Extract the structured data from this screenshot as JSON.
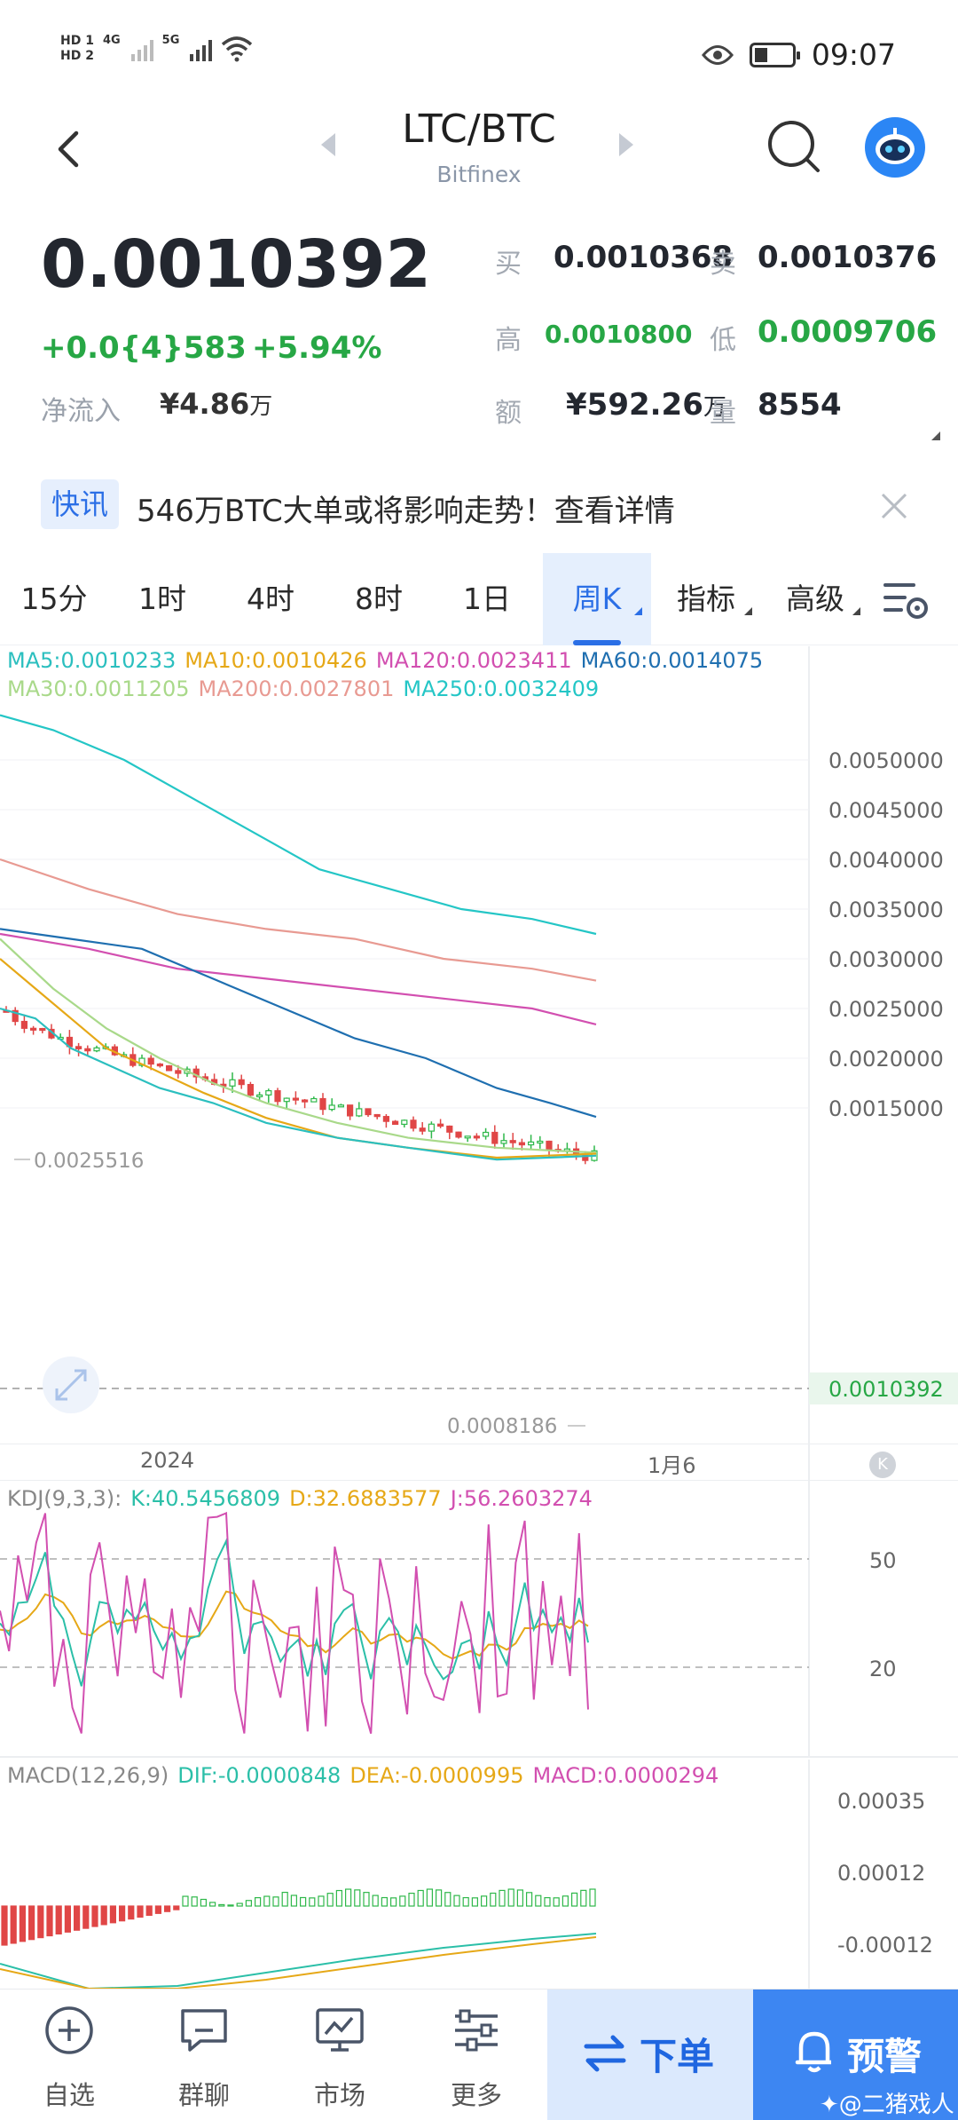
{
  "status_bar": {
    "hd1": "HD 1",
    "hd2": "HD 2",
    "net1": "4G",
    "net2": "5G",
    "time": "09:07",
    "icons": [
      "wifi-icon",
      "eye-icon",
      "battery-icon"
    ]
  },
  "header": {
    "title": "LTC/BTC",
    "exchange": "Bitfinex",
    "icons": [
      "back-arrow-icon",
      "search-icon",
      "robot-avatar-icon"
    ]
  },
  "quote": {
    "last_price": "0.0010392",
    "change_abs": "+0.0{4}583",
    "change_pct": "+5.94%",
    "net_inflow_label": "净流入",
    "net_inflow_value": "¥4.86",
    "net_inflow_unit": "万",
    "bid_label": "买",
    "bid": "0.0010368",
    "ask_label": "卖",
    "ask": "0.0010376",
    "high_label": "高",
    "high": "0.0010800",
    "low_label": "低",
    "low": "0.0009706",
    "amount_label": "额",
    "amount": "¥592.26",
    "amount_unit": "万",
    "volume_label": "量",
    "volume": "8554"
  },
  "news": {
    "tag": "快讯",
    "text": "546万BTC大单或将影响走势！查看详情"
  },
  "tabs": [
    {
      "label": "15分"
    },
    {
      "label": "1时"
    },
    {
      "label": "4时"
    },
    {
      "label": "8时"
    },
    {
      "label": "1日"
    },
    {
      "label": "周K",
      "active": true
    },
    {
      "label": "指标"
    },
    {
      "label": "高级"
    }
  ],
  "main_chart": {
    "legend": [
      {
        "text": "MA5:0.0010233",
        "color": "#2bbfbf"
      },
      {
        "text": "MA10:0.0010426",
        "color": "#e6a817"
      },
      {
        "text": "MA120:0.0023411",
        "color": "#d24fb0"
      },
      {
        "text": "MA60:0.0014075",
        "color": "#1f6fb0"
      },
      {
        "text": "MA30:0.0011205",
        "color": "#a9d98a"
      },
      {
        "text": "MA200:0.0027801",
        "color": "#e89a92"
      },
      {
        "text": "MA250:0.0032409",
        "color": "#24c6c6"
      }
    ],
    "y_ticks": [
      "0.0050000",
      "0.0045000",
      "0.0040000",
      "0.0035000",
      "0.0030000",
      "0.0025000",
      "0.0020000",
      "0.0015000"
    ],
    "current_price_tag": "0.0010392",
    "max_annotation": "0.0025516",
    "min_annotation": "0.0008186",
    "x_labels": [
      "2024",
      "1月6"
    ]
  },
  "kdj": {
    "title": "KDJ(9,3,3):",
    "k": "K:40.5456809",
    "d": "D:32.6883577",
    "j": "J:56.2603274",
    "y_ticks": [
      "50",
      "20"
    ],
    "colors": {
      "k": "#2bbfa8",
      "d": "#e6a817",
      "j": "#d24fb0"
    }
  },
  "macd": {
    "title": "MACD(12,26,9)",
    "dif": "DIF:-0.0000848",
    "dea": "DEA:-0.0000995",
    "macd": "MACD:0.0000294",
    "y_ticks": [
      "0.00035",
      "0.00012",
      "-0.00012"
    ]
  },
  "bottom_nav": {
    "items": [
      {
        "label": "自选",
        "icon": "add-circle-icon"
      },
      {
        "label": "群聊",
        "icon": "chat-icon"
      },
      {
        "label": "市场",
        "icon": "market-monitor-icon"
      },
      {
        "label": "更多",
        "icon": "more-sliders-icon"
      }
    ],
    "order_label": "下单",
    "alert_label": "预警"
  },
  "watermark": "✦@二猪戏人"
}
